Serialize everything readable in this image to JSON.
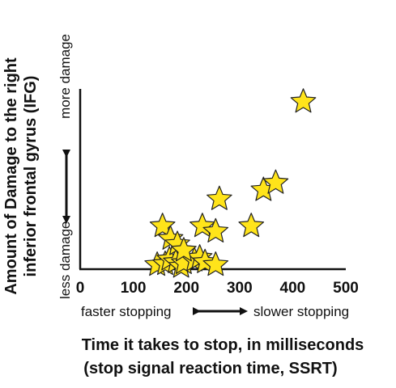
{
  "chart_data": {
    "type": "scatter",
    "xlabel_line1": "Time it takes to stop, in milliseconds",
    "xlabel_line2": "(stop signal reaction time, SSRT)",
    "ylabel_line1": "Amount of Damage to the right",
    "ylabel_line2": "inferior frontal gyrus (IFG)",
    "xlim": [
      0,
      500
    ],
    "ylim": [
      0,
      10
    ],
    "x_ticks": [
      "0",
      "100",
      "200",
      "300",
      "400",
      "500"
    ],
    "x_annotation_left": "faster stopping",
    "x_annotation_right": "slower stopping",
    "y_annotation_low": "less damage",
    "y_annotation_high": "more damage",
    "marker": "star",
    "marker_color": "#ffe41a",
    "grid": false,
    "points": [
      {
        "x": 145,
        "y": 0.15
      },
      {
        "x": 160,
        "y": 0.2
      },
      {
        "x": 168,
        "y": 0.45
      },
      {
        "x": 180,
        "y": 0.3
      },
      {
        "x": 190,
        "y": 0.05
      },
      {
        "x": 195,
        "y": 0.25
      },
      {
        "x": 215,
        "y": 0.4
      },
      {
        "x": 225,
        "y": 0.55
      },
      {
        "x": 235,
        "y": 0.3
      },
      {
        "x": 255,
        "y": 0.15
      },
      {
        "x": 155,
        "y": 2.3
      },
      {
        "x": 170,
        "y": 1.6
      },
      {
        "x": 183,
        "y": 1.3
      },
      {
        "x": 195,
        "y": 0.95
      },
      {
        "x": 230,
        "y": 2.3
      },
      {
        "x": 255,
        "y": 2.0
      },
      {
        "x": 262,
        "y": 3.8
      },
      {
        "x": 322,
        "y": 2.3
      },
      {
        "x": 345,
        "y": 4.3
      },
      {
        "x": 368,
        "y": 4.7
      },
      {
        "x": 420,
        "y": 9.2
      }
    ]
  }
}
